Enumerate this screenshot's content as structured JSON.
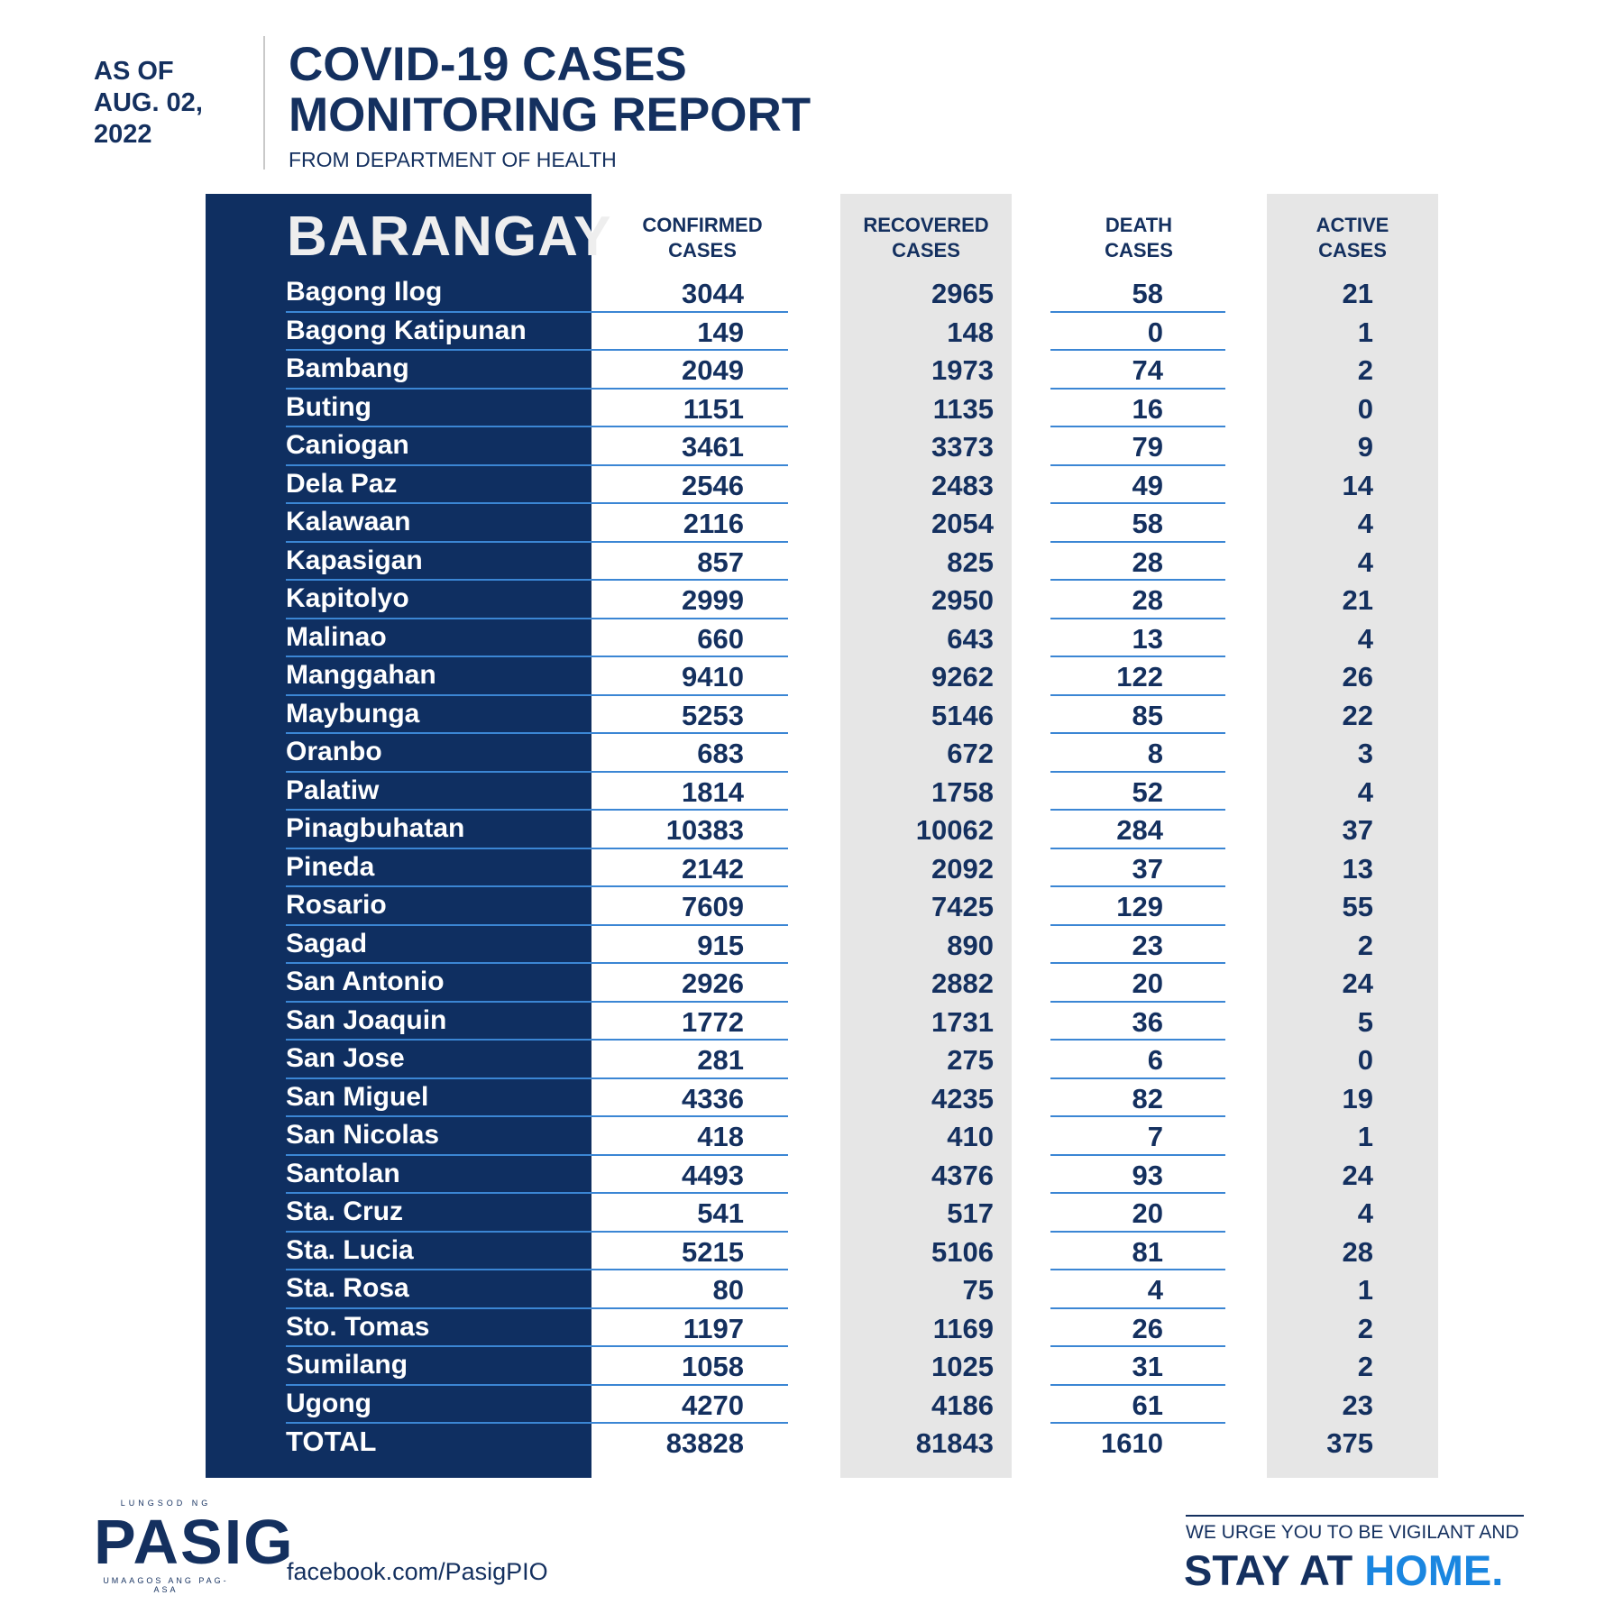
{
  "header": {
    "as_of_line1": "AS OF",
    "as_of_line2": "AUG. 02,",
    "as_of_line3": "2022",
    "title_line1": "COVID-19 CASES",
    "title_line2": "MONITORING REPORT",
    "subtitle": "FROM DEPARTMENT OF HEALTH"
  },
  "columns": {
    "barangay": "BARANGAY",
    "confirmed_line1": "CONFIRMED",
    "confirmed_line2": "CASES",
    "recovered_line1": "RECOVERED",
    "recovered_line2": "CASES",
    "death_line1": "DEATH",
    "death_line2": "CASES",
    "active_line1": "ACTIVE",
    "active_line2": "CASES"
  },
  "rows": [
    {
      "name": "Bagong Ilog",
      "confirmed": "3044",
      "recovered": "2965",
      "death": "58",
      "active": "21"
    },
    {
      "name": "Bagong Katipunan",
      "confirmed": "149",
      "recovered": "148",
      "death": "0",
      "active": "1"
    },
    {
      "name": "Bambang",
      "confirmed": "2049",
      "recovered": "1973",
      "death": "74",
      "active": "2"
    },
    {
      "name": "Buting",
      "confirmed": "1151",
      "recovered": "1135",
      "death": "16",
      "active": "0"
    },
    {
      "name": "Caniogan",
      "confirmed": "3461",
      "recovered": "3373",
      "death": "79",
      "active": "9"
    },
    {
      "name": "Dela Paz",
      "confirmed": "2546",
      "recovered": "2483",
      "death": "49",
      "active": "14"
    },
    {
      "name": "Kalawaan",
      "confirmed": "2116",
      "recovered": "2054",
      "death": "58",
      "active": "4"
    },
    {
      "name": "Kapasigan",
      "confirmed": "857",
      "recovered": "825",
      "death": "28",
      "active": "4"
    },
    {
      "name": "Kapitolyo",
      "confirmed": "2999",
      "recovered": "2950",
      "death": "28",
      "active": "21"
    },
    {
      "name": "Malinao",
      "confirmed": "660",
      "recovered": "643",
      "death": "13",
      "active": "4"
    },
    {
      "name": "Manggahan",
      "confirmed": "9410",
      "recovered": "9262",
      "death": "122",
      "active": "26"
    },
    {
      "name": "Maybunga",
      "confirmed": "5253",
      "recovered": "5146",
      "death": "85",
      "active": "22"
    },
    {
      "name": "Oranbo",
      "confirmed": "683",
      "recovered": "672",
      "death": "8",
      "active": "3"
    },
    {
      "name": "Palatiw",
      "confirmed": "1814",
      "recovered": "1758",
      "death": "52",
      "active": "4"
    },
    {
      "name": "Pinagbuhatan",
      "confirmed": "10383",
      "recovered": "10062",
      "death": "284",
      "active": "37"
    },
    {
      "name": "Pineda",
      "confirmed": "2142",
      "recovered": "2092",
      "death": "37",
      "active": "13"
    },
    {
      "name": "Rosario",
      "confirmed": "7609",
      "recovered": "7425",
      "death": "129",
      "active": "55"
    },
    {
      "name": "Sagad",
      "confirmed": "915",
      "recovered": "890",
      "death": "23",
      "active": "2"
    },
    {
      "name": "San Antonio",
      "confirmed": "2926",
      "recovered": "2882",
      "death": "20",
      "active": "24"
    },
    {
      "name": "San Joaquin",
      "confirmed": "1772",
      "recovered": "1731",
      "death": "36",
      "active": "5"
    },
    {
      "name": "San Jose",
      "confirmed": "281",
      "recovered": "275",
      "death": "6",
      "active": "0"
    },
    {
      "name": "San Miguel",
      "confirmed": "4336",
      "recovered": "4235",
      "death": "82",
      "active": "19"
    },
    {
      "name": "San Nicolas",
      "confirmed": "418",
      "recovered": "410",
      "death": "7",
      "active": "1"
    },
    {
      "name": "Santolan",
      "confirmed": "4493",
      "recovered": "4376",
      "death": "93",
      "active": "24"
    },
    {
      "name": "Sta. Cruz",
      "confirmed": "541",
      "recovered": "517",
      "death": "20",
      "active": "4"
    },
    {
      "name": "Sta. Lucia",
      "confirmed": "5215",
      "recovered": "5106",
      "death": "81",
      "active": "28"
    },
    {
      "name": "Sta. Rosa",
      "confirmed": "80",
      "recovered": "75",
      "death": "4",
      "active": "1"
    },
    {
      "name": "Sto. Tomas",
      "confirmed": "1197",
      "recovered": "1169",
      "death": "26",
      "active": "2"
    },
    {
      "name": "Sumilang",
      "confirmed": "1058",
      "recovered": "1025",
      "death": "31",
      "active": "2"
    },
    {
      "name": "Ugong",
      "confirmed": "4270",
      "recovered": "4186",
      "death": "61",
      "active": "23"
    }
  ],
  "total": {
    "name": "TOTAL",
    "confirmed": "83828",
    "recovered": "81843",
    "death": "1610",
    "active": "375"
  },
  "footer": {
    "logo_top": "LUNGSOD NG",
    "logo_main": "PASIG",
    "logo_bottom": "UMAAGOS ANG PAG-ASA",
    "facebook": "facebook.com/PasigPIO",
    "urge": "WE URGE YOU TO BE VIGILANT AND",
    "stay_part1": "STAY AT ",
    "stay_part2": "HOME."
  },
  "colors": {
    "navy": "#0f2f61",
    "text": "#14305f",
    "accent": "#1a86e0",
    "grid_line": "#3b86d4",
    "grey_band": "#e6e6e6"
  }
}
